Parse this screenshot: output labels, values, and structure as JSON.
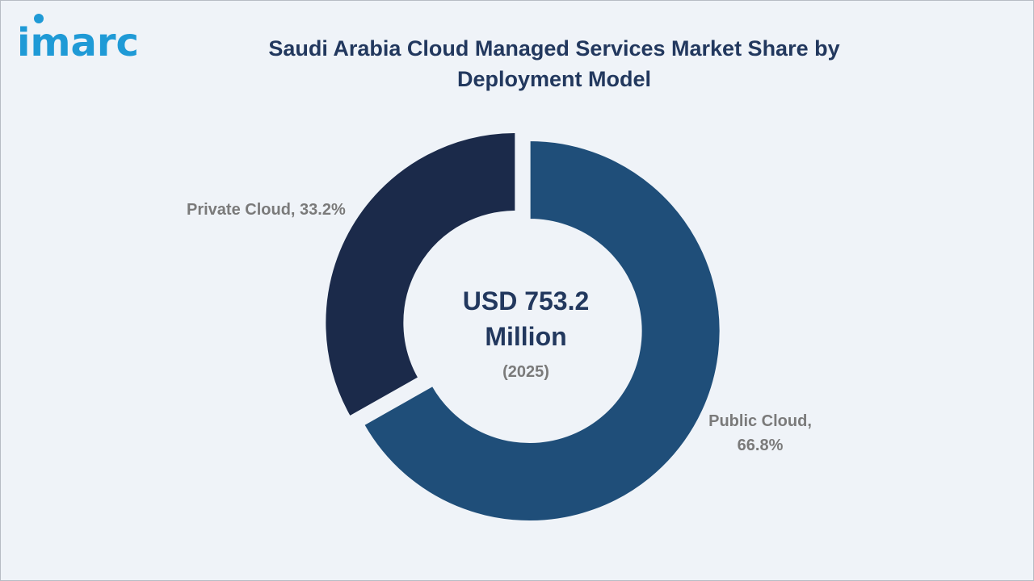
{
  "logo": {
    "text": "imarc",
    "color": "#1f9ad6"
  },
  "title": "Saudi Arabia Cloud Managed Services Market Share by Deployment Model",
  "colors": {
    "title": "#22385e",
    "background": "#eff3f8",
    "label": "#7a7a7a"
  },
  "center": {
    "value": "USD 753.2 Million",
    "year": "(2025)"
  },
  "labels": {
    "private": "Private Cloud, 33.2%",
    "public": "Public Cloud, 66.8%"
  },
  "chart_data": {
    "type": "pie",
    "donut": true,
    "title": "Saudi Arabia Cloud Managed Services Market Share by Deployment Model",
    "categories": [
      "Public Cloud",
      "Private Cloud"
    ],
    "values": [
      66.8,
      33.2
    ],
    "unit": "%",
    "colors": [
      "#1f4e79",
      "#1b2a4a"
    ],
    "exploded": true
  }
}
